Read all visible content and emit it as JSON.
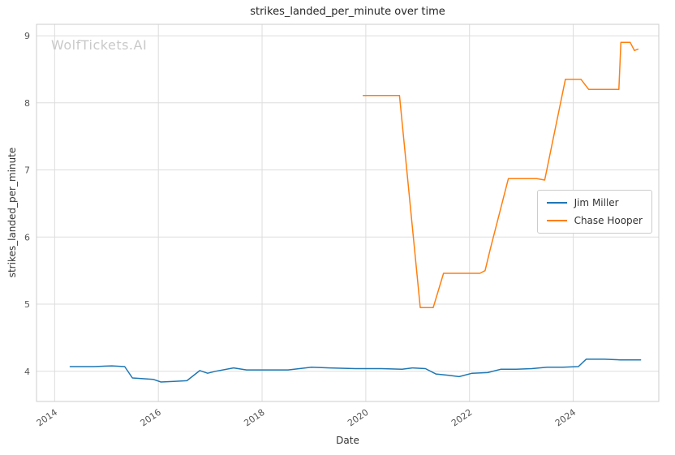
{
  "watermark": "WolfTickets.AI",
  "chart_data": {
    "type": "line",
    "title": "strikes_landed_per_minute over time",
    "xlabel": "Date",
    "ylabel": "strikes_landed_per_minute",
    "xlim": [
      2013.65,
      2025.65
    ],
    "ylim": [
      3.55,
      9.17
    ],
    "xticks": [
      2014,
      2016,
      2018,
      2020,
      2022,
      2024
    ],
    "yticks": [
      4,
      5,
      6,
      7,
      8,
      9
    ],
    "grid": true,
    "grid_color": "#dddddd",
    "spine_color": "#cccccc",
    "legend_position": "center right",
    "series": [
      {
        "name": "Jim Miller",
        "color": "#1f77b4",
        "points": [
          [
            2014.3,
            4.07
          ],
          [
            2014.75,
            4.07
          ],
          [
            2015.1,
            4.08
          ],
          [
            2015.35,
            4.07
          ],
          [
            2015.5,
            3.9
          ],
          [
            2015.7,
            3.89
          ],
          [
            2015.9,
            3.88
          ],
          [
            2016.05,
            3.84
          ],
          [
            2016.3,
            3.85
          ],
          [
            2016.55,
            3.86
          ],
          [
            2016.8,
            4.01
          ],
          [
            2016.95,
            3.97
          ],
          [
            2017.1,
            4.0
          ],
          [
            2017.45,
            4.05
          ],
          [
            2017.7,
            4.02
          ],
          [
            2018.0,
            4.02
          ],
          [
            2018.5,
            4.02
          ],
          [
            2018.95,
            4.06
          ],
          [
            2019.3,
            4.05
          ],
          [
            2019.8,
            4.04
          ],
          [
            2020.3,
            4.04
          ],
          [
            2020.7,
            4.03
          ],
          [
            2020.9,
            4.05
          ],
          [
            2021.15,
            4.04
          ],
          [
            2021.35,
            3.96
          ],
          [
            2021.6,
            3.94
          ],
          [
            2021.8,
            3.92
          ],
          [
            2022.05,
            3.97
          ],
          [
            2022.35,
            3.98
          ],
          [
            2022.6,
            4.03
          ],
          [
            2022.9,
            4.03
          ],
          [
            2023.2,
            4.04
          ],
          [
            2023.5,
            4.06
          ],
          [
            2023.8,
            4.06
          ],
          [
            2024.1,
            4.07
          ],
          [
            2024.25,
            4.18
          ],
          [
            2024.6,
            4.18
          ],
          [
            2024.9,
            4.17
          ],
          [
            2025.3,
            4.17
          ]
        ]
      },
      {
        "name": "Chase Hooper",
        "color": "#ff7f0e",
        "points": [
          [
            2019.95,
            8.11
          ],
          [
            2020.65,
            8.11
          ],
          [
            2021.05,
            4.95
          ],
          [
            2021.3,
            4.95
          ],
          [
            2021.5,
            5.46
          ],
          [
            2022.2,
            5.46
          ],
          [
            2022.3,
            5.5
          ],
          [
            2022.4,
            5.82
          ],
          [
            2022.75,
            6.87
          ],
          [
            2023.3,
            6.87
          ],
          [
            2023.45,
            6.85
          ],
          [
            2023.85,
            8.35
          ],
          [
            2024.15,
            8.35
          ],
          [
            2024.3,
            8.2
          ],
          [
            2024.88,
            8.2
          ],
          [
            2024.92,
            8.9
          ],
          [
            2025.1,
            8.9
          ],
          [
            2025.18,
            8.78
          ],
          [
            2025.25,
            8.8
          ]
        ]
      }
    ]
  }
}
